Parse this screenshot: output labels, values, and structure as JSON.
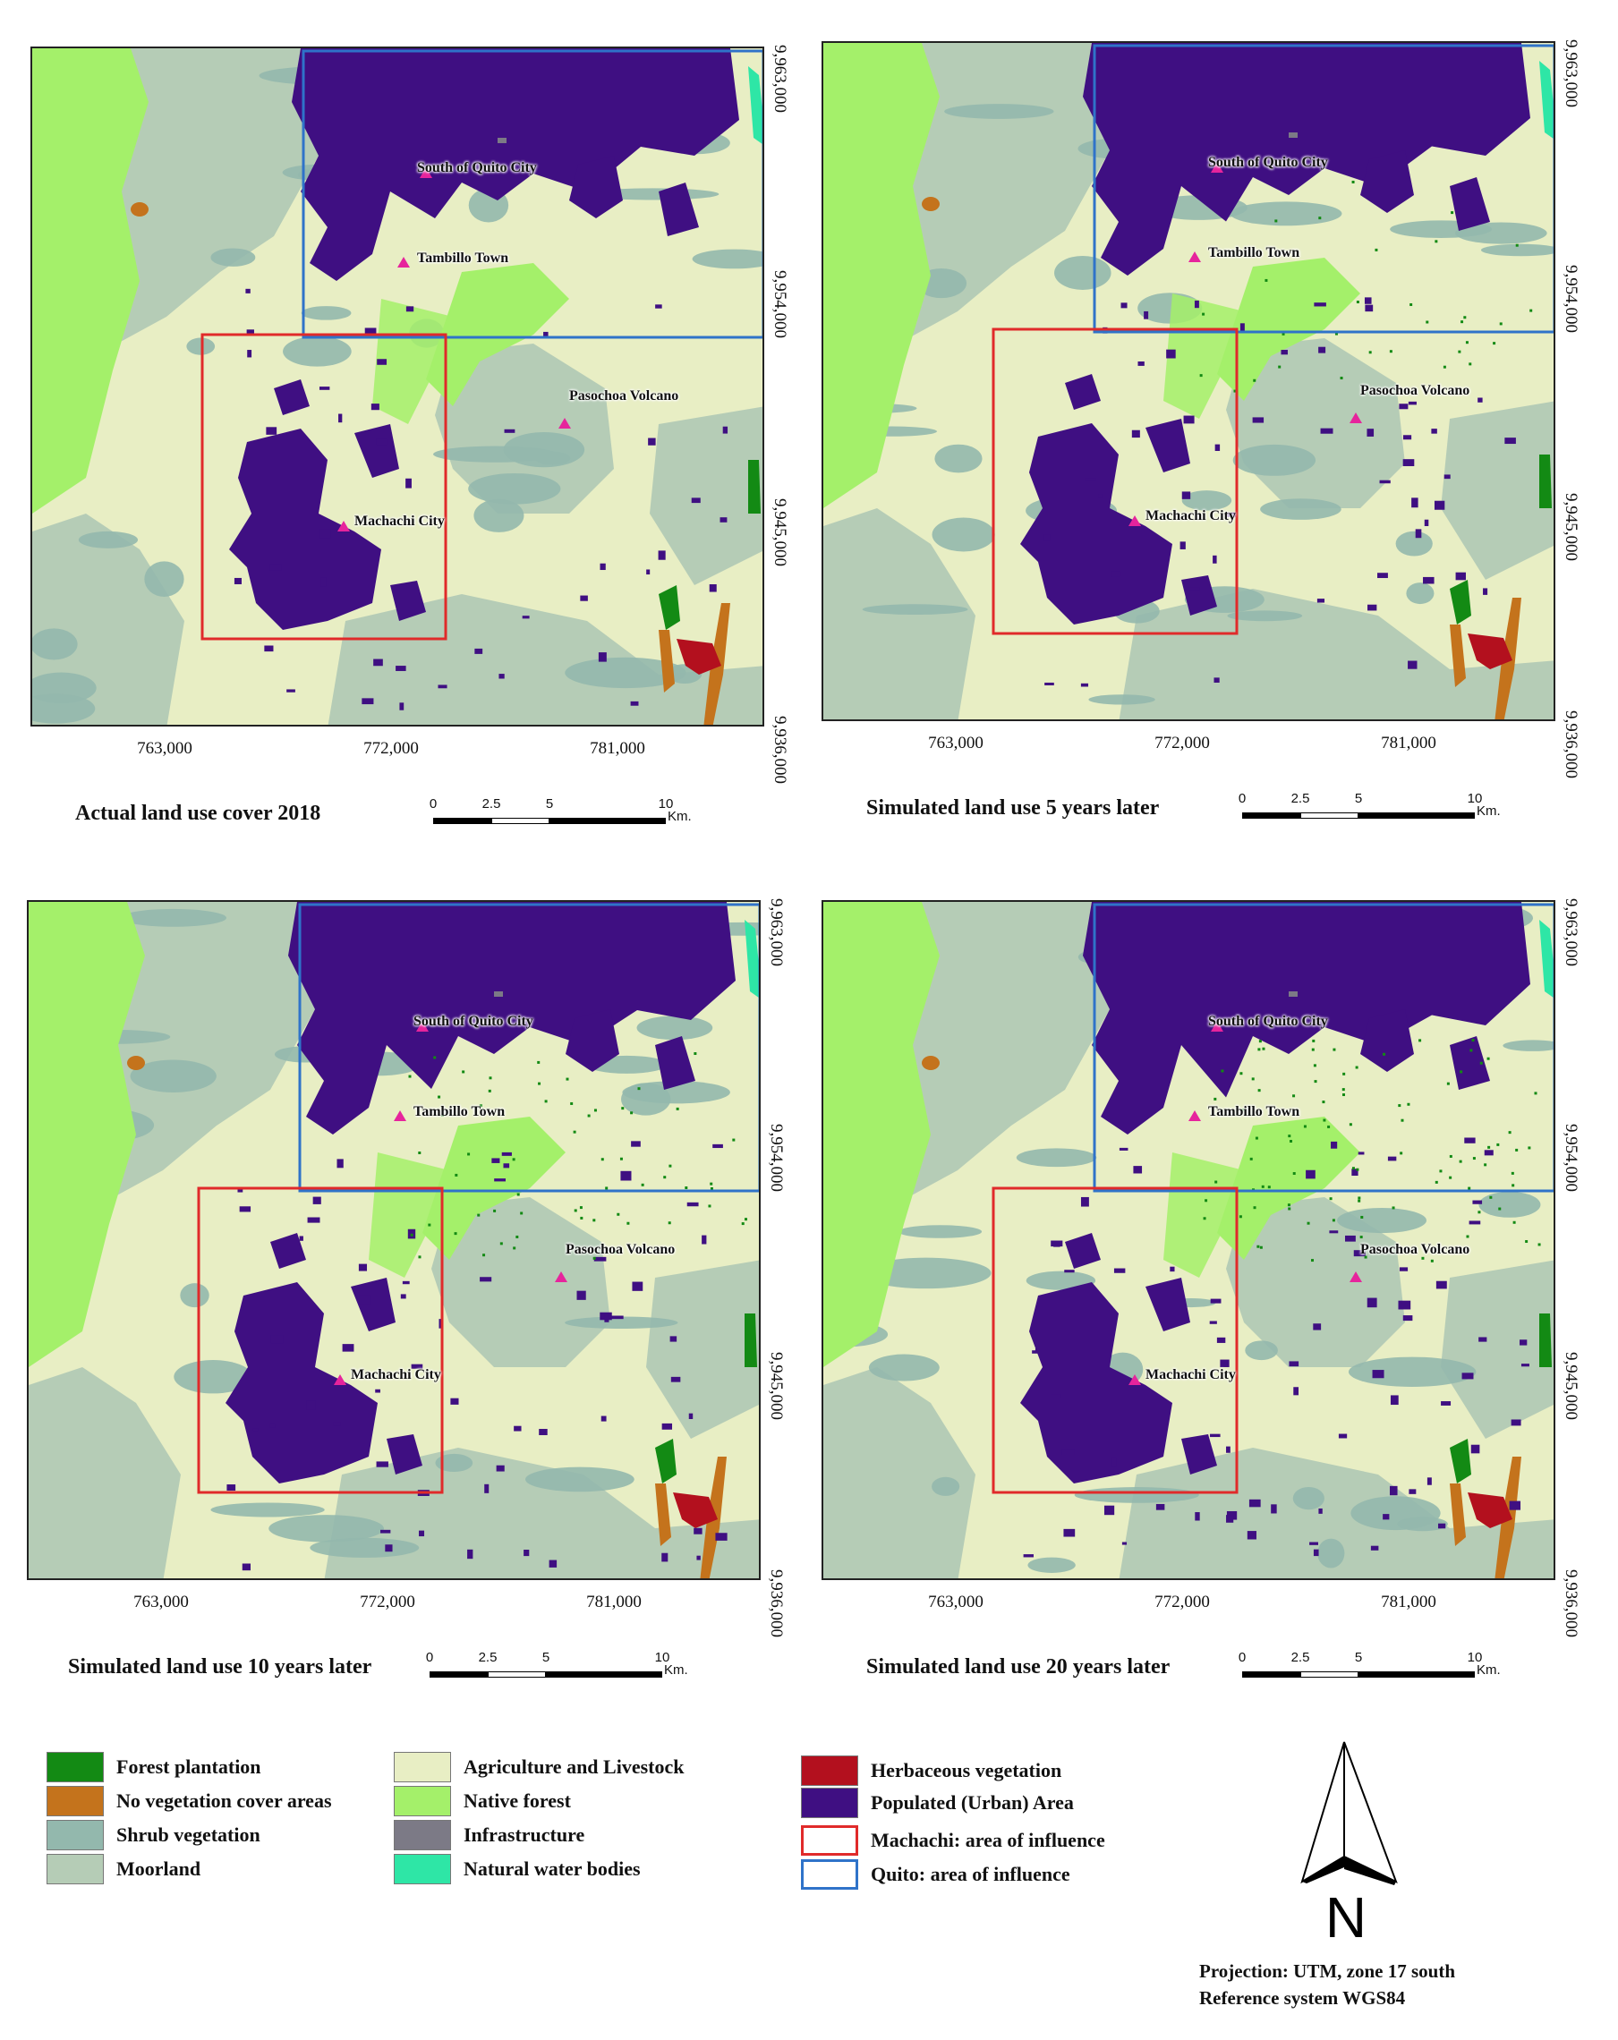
{
  "colors": {
    "forest_plantation": "#138a14",
    "no_vegetation": "#c4731c",
    "shrub": "#93b8ad",
    "moorland": "#b5ccb6",
    "agriculture": "#e8eec4",
    "native_forest": "#a4f06a",
    "infrastructure": "#7c7a86",
    "water": "#2ee6a6",
    "herbaceous": "#b3101e",
    "urban": "#3f0f82",
    "machachi_box": "#e02a2a",
    "quito_box": "#2f73c9",
    "marker": "#e6249c"
  },
  "axes": {
    "x_ticks": [
      "763,000",
      "772,000",
      "781,000"
    ],
    "y_ticks": [
      "9,963,000",
      "9,954,000",
      "9,945,000",
      "9,936,000"
    ]
  },
  "scale": {
    "labels": [
      "0",
      "2.5",
      "5",
      "10"
    ],
    "unit": "Km."
  },
  "panels": [
    {
      "title": "Actual land use cover 2018",
      "places": {
        "quito": "South of Quito City",
        "tambillo": "Tambillo Town",
        "pasochoa": "Pasochoa Volcano",
        "machachi": "Machachi City"
      }
    },
    {
      "title": "Simulated land use 5 years later",
      "places": {
        "quito": "South of Quito City",
        "tambillo": "Tambillo Town",
        "pasochoa": "Pasochoa Volcano",
        "machachi": "Machachi City"
      }
    },
    {
      "title": "Simulated land use 10 years later",
      "places": {
        "quito": "South of Quito City",
        "tambillo": "Tambillo Town",
        "pasochoa": "Pasochoa Volcano",
        "machachi": "Machachi City"
      }
    },
    {
      "title": "Simulated land use 20 years later",
      "places": {
        "quito": "South of Quito City",
        "tambillo": "Tambillo Town",
        "pasochoa": "Pasochoa Volcano",
        "machachi": "Machachi City"
      }
    }
  ],
  "legend": [
    {
      "label": "Forest plantation",
      "color": "#138a14",
      "outline": false
    },
    {
      "label": "No vegetation cover areas",
      "color": "#c4731c",
      "outline": false
    },
    {
      "label": "Shrub vegetation",
      "color": "#93b8ad",
      "outline": false
    },
    {
      "label": "Moorland",
      "color": "#b5ccb6",
      "outline": false
    },
    {
      "label": "Agriculture and Livestock",
      "color": "#e8eec4",
      "outline": false
    },
    {
      "label": "Native forest",
      "color": "#a4f06a",
      "outline": false
    },
    {
      "label": "Infrastructure",
      "color": "#7c7a86",
      "outline": false
    },
    {
      "label": "Natural water bodies",
      "color": "#2ee6a6",
      "outline": false
    },
    {
      "label": "Herbaceous vegetation",
      "color": "#b3101e",
      "outline": false
    },
    {
      "label": "Populated (Urban) Area",
      "color": "#3f0f82",
      "outline": false
    },
    {
      "label": "Machachi: area of influence",
      "color": "#e02a2a",
      "outline": true
    },
    {
      "label": "Quito: area of influence",
      "color": "#2f73c9",
      "outline": true
    }
  ],
  "north_arrow": {
    "letter": "N"
  },
  "projection": {
    "line1": "Projection: UTM, zone 17 south",
    "line2": "Reference system WGS84"
  }
}
